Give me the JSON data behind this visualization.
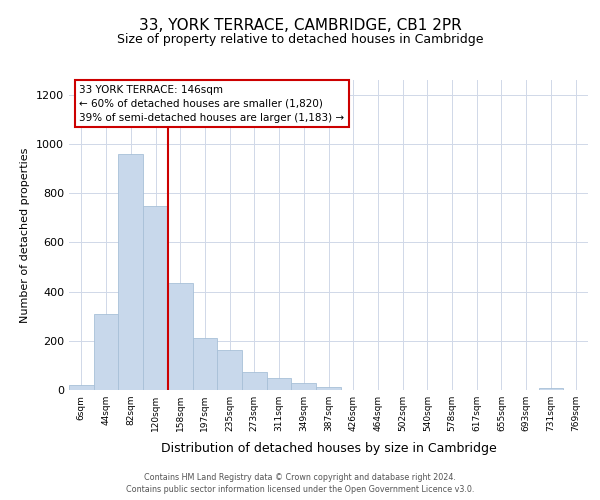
{
  "title": "33, YORK TERRACE, CAMBRIDGE, CB1 2PR",
  "subtitle": "Size of property relative to detached houses in Cambridge",
  "xlabel": "Distribution of detached houses by size in Cambridge",
  "ylabel": "Number of detached properties",
  "footer_line1": "Contains HM Land Registry data © Crown copyright and database right 2024.",
  "footer_line2": "Contains public sector information licensed under the Open Government Licence v3.0.",
  "bin_labels": [
    "6sqm",
    "44sqm",
    "82sqm",
    "120sqm",
    "158sqm",
    "197sqm",
    "235sqm",
    "273sqm",
    "311sqm",
    "349sqm",
    "387sqm",
    "426sqm",
    "464sqm",
    "502sqm",
    "540sqm",
    "578sqm",
    "617sqm",
    "655sqm",
    "693sqm",
    "731sqm",
    "769sqm"
  ],
  "bar_heights": [
    20,
    308,
    960,
    748,
    435,
    212,
    163,
    72,
    47,
    30,
    14,
    0,
    0,
    0,
    0,
    0,
    0,
    0,
    0,
    8,
    0
  ],
  "bar_color": "#c8d8eb",
  "bar_edge_color": "#a8c0d8",
  "vline_x": 4,
  "vline_color": "#cc0000",
  "annotation_line1": "33 YORK TERRACE: 146sqm",
  "annotation_line2": "← 60% of detached houses are smaller (1,820)",
  "annotation_line3": "39% of semi-detached houses are larger (1,183) →",
  "annotation_box_facecolor": "white",
  "annotation_box_edgecolor": "#cc0000",
  "ylim": [
    0,
    1260
  ],
  "yticks": [
    0,
    200,
    400,
    600,
    800,
    1000,
    1200
  ],
  "bg_color": "#ffffff",
  "grid_color": "#d0d8e8",
  "title_fontsize": 11,
  "subtitle_fontsize": 9
}
